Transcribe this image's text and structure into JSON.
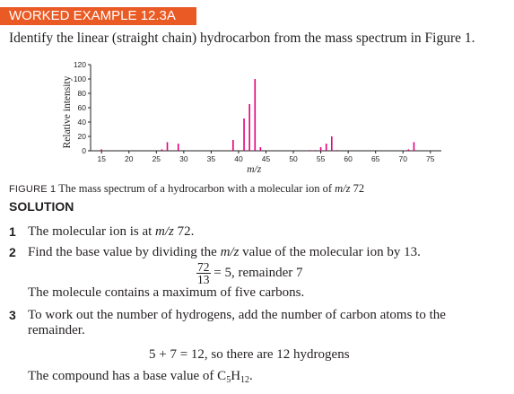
{
  "banner": {
    "label": "WORKED EXAMPLE 12.3A"
  },
  "prompt": "Identify the linear (straight chain) hydrocarbon from the mass spectrum in Figure 1.",
  "chart_data": {
    "type": "bar",
    "xlabel": "m/z",
    "ylabel": "Relative intensity",
    "xlim": [
      13,
      77
    ],
    "ylim": [
      0,
      120
    ],
    "xticks": [
      15,
      20,
      25,
      30,
      35,
      40,
      45,
      50,
      55,
      60,
      65,
      70,
      75
    ],
    "yticks": [
      0,
      20,
      40,
      60,
      80,
      100,
      120
    ],
    "color": "#e4007c",
    "x": [
      15,
      26,
      27,
      29,
      39,
      41,
      42,
      43,
      44,
      53,
      54,
      55,
      56,
      57,
      58,
      71,
      72
    ],
    "values": [
      2,
      2,
      12,
      10,
      15,
      45,
      65,
      100,
      5,
      1,
      1,
      5,
      10,
      20,
      1,
      2,
      12
    ]
  },
  "caption": {
    "label": "FIGURE 1",
    "text_pre": "The mass spectrum of a hydrocarbon with a molecular ion of ",
    "mz": "m/z",
    "text_post": " 72"
  },
  "solution": {
    "heading": "SOLUTION",
    "step1": {
      "number": "1",
      "pre": "The molecular ion is at ",
      "mz": "m/z",
      "post": " 72."
    },
    "step2": {
      "number": "2",
      "pre": "Find the base value by dividing the ",
      "mz": "m/z",
      "post": " value of the molecular ion by 13.",
      "frac_num": "72",
      "frac_den": "13",
      "result": "= 5, remainder 7",
      "followup": "The molecule contains a maximum of five carbons."
    },
    "step3": {
      "number": "3",
      "line1": "To work out the number of hydrogens, add the number of carbon atoms to the",
      "line2": "remainder.",
      "calc": "5 + 7 = 12, so there are 12 hydrogens",
      "conclusion_pre": "The compound has a base value of C",
      "sub_c": "5",
      "mid_h": "H",
      "sub_h": "12",
      "conclusion_post": "."
    }
  }
}
